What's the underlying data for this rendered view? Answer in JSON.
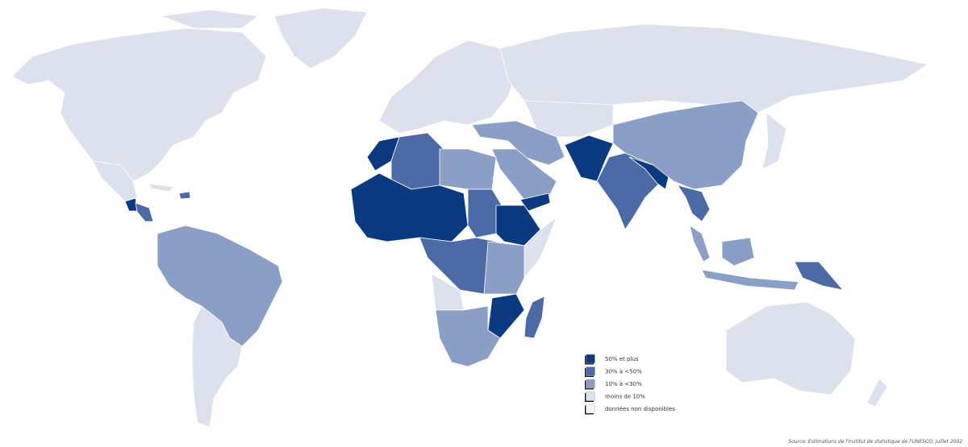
{
  "legend": {
    "items": [
      {
        "label": "50% et plus",
        "color": "#0b3a80"
      },
      {
        "label": "30% à <50%",
        "color": "#4c6aa6"
      },
      {
        "label": "10% à <30%",
        "color": "#8b9ec5"
      },
      {
        "label": "moins de 10%",
        "color": "#dde1ee"
      },
      {
        "label": "données non disponibles",
        "color": "#f4f4f8"
      }
    ]
  },
  "source": "Source:  Estimations de l'Institut de statistique de l'UNESCO, juillet 2002."
}
